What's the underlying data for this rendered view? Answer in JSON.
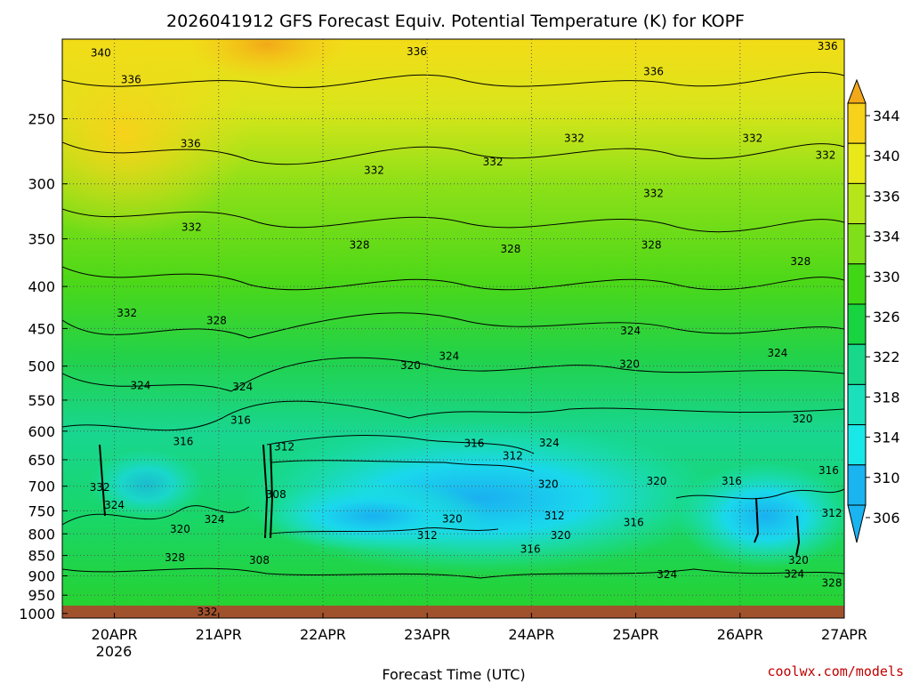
{
  "chart_data": {
    "type": "heatmap",
    "title": "2026041912 GFS Forecast Equiv. Potential Temperature (K) for KOPF",
    "xlabel": "Forecast Time (UTC)",
    "ylabel": "",
    "credit": "coolwx.com/models",
    "x_ticks": [
      "20APR",
      "21APR",
      "22APR",
      "23APR",
      "24APR",
      "25APR",
      "26APR",
      "27APR"
    ],
    "x_year_label": "2026",
    "x_range_days": [
      19.5,
      27.0
    ],
    "y_ticks": [
      250,
      300,
      350,
      400,
      450,
      500,
      550,
      600,
      650,
      700,
      750,
      800,
      850,
      900,
      950,
      1000
    ],
    "y_tick_labels": [
      "250",
      "300",
      "350",
      "400",
      "450",
      "500",
      "550",
      "600",
      "650",
      "700",
      "750",
      "800",
      "850",
      "900",
      "950",
      "1000"
    ],
    "y_range_hpa": [
      200,
      1013
    ],
    "y_scale": "log-pressure",
    "grid": true,
    "colorbar_ticks": [
      "344",
      "340",
      "336",
      "334",
      "330",
      "326",
      "322",
      "318",
      "314",
      "310",
      "306"
    ],
    "colorbar_levels": [
      344,
      340,
      336,
      334,
      330,
      326,
      322,
      318,
      314,
      310,
      306
    ],
    "colors": {
      "c344": "#f2a818",
      "c340": "#f7d21a",
      "c336": "#e8e81a",
      "c334": "#b6e51a",
      "c330": "#80df18",
      "c326": "#40d816",
      "c322": "#18d440",
      "c318": "#18d88c",
      "c314": "#1ae0bc",
      "c310": "#1ae8e8",
      "c306": "#1ab4f0",
      "ground": "#a0522d",
      "grid": "#7a7a7a"
    },
    "contour_labels": [
      {
        "text": "340",
        "day": 19.87,
        "p": 208
      },
      {
        "text": "336",
        "day": 20.16,
        "p": 224
      },
      {
        "text": "336",
        "day": 20.73,
        "p": 268
      },
      {
        "text": "332",
        "day": 20.74,
        "p": 339
      },
      {
        "text": "332",
        "day": 20.12,
        "p": 431
      },
      {
        "text": "328",
        "day": 20.98,
        "p": 440
      },
      {
        "text": "324",
        "day": 20.25,
        "p": 528
      },
      {
        "text": "316",
        "day": 20.66,
        "p": 618
      },
      {
        "text": "332",
        "day": 19.86,
        "p": 702
      },
      {
        "text": "324",
        "day": 20.0,
        "p": 738
      },
      {
        "text": "320",
        "day": 20.63,
        "p": 790
      },
      {
        "text": "324",
        "day": 20.96,
        "p": 768
      },
      {
        "text": "328",
        "day": 20.58,
        "p": 855
      },
      {
        "text": "332",
        "day": 20.89,
        "p": 996
      },
      {
        "text": "336",
        "day": 22.9,
        "p": 207
      },
      {
        "text": "332",
        "day": 22.49,
        "p": 289
      },
      {
        "text": "328",
        "day": 22.35,
        "p": 356
      },
      {
        "text": "324",
        "day": 21.23,
        "p": 530
      },
      {
        "text": "316",
        "day": 21.21,
        "p": 582
      },
      {
        "text": "312",
        "day": 21.63,
        "p": 627
      },
      {
        "text": "308",
        "day": 21.55,
        "p": 716
      },
      {
        "text": "308",
        "day": 21.39,
        "p": 861
      },
      {
        "text": "320",
        "day": 22.84,
        "p": 499
      },
      {
        "text": "324",
        "day": 23.21,
        "p": 486
      },
      {
        "text": "332",
        "day": 23.63,
        "p": 282
      },
      {
        "text": "328",
        "day": 23.8,
        "p": 360
      },
      {
        "text": "316",
        "day": 23.45,
        "p": 621
      },
      {
        "text": "312",
        "day": 23.82,
        "p": 643
      },
      {
        "text": "324",
        "day": 24.17,
        "p": 620
      },
      {
        "text": "320",
        "day": 24.16,
        "p": 696
      },
      {
        "text": "312",
        "day": 24.22,
        "p": 761
      },
      {
        "text": "320",
        "day": 23.24,
        "p": 767
      },
      {
        "text": "312",
        "day": 23.0,
        "p": 803
      },
      {
        "text": "316",
        "day": 23.99,
        "p": 835
      },
      {
        "text": "320",
        "day": 24.28,
        "p": 803
      },
      {
        "text": "332",
        "day": 24.41,
        "p": 264
      },
      {
        "text": "336",
        "day": 25.17,
        "p": 219
      },
      {
        "text": "332",
        "day": 25.17,
        "p": 308
      },
      {
        "text": "328",
        "day": 25.15,
        "p": 356
      },
      {
        "text": "324",
        "day": 24.95,
        "p": 453
      },
      {
        "text": "320",
        "day": 24.94,
        "p": 497
      },
      {
        "text": "316",
        "day": 24.98,
        "p": 775
      },
      {
        "text": "320",
        "day": 25.2,
        "p": 690
      },
      {
        "text": "324",
        "day": 25.3,
        "p": 896
      },
      {
        "text": "332",
        "day": 26.12,
        "p": 264
      },
      {
        "text": "328",
        "day": 26.58,
        "p": 373
      },
      {
        "text": "324",
        "day": 26.36,
        "p": 482
      },
      {
        "text": "320",
        "day": 26.6,
        "p": 580
      },
      {
        "text": "316",
        "day": 25.92,
        "p": 690
      },
      {
        "text": "316",
        "day": 26.85,
        "p": 670
      },
      {
        "text": "312",
        "day": 27.05,
        "p": 755
      },
      {
        "text": "320",
        "day": 26.56,
        "p": 862
      },
      {
        "text": "324",
        "day": 26.52,
        "p": 895
      },
      {
        "text": "328",
        "day": 26.91,
        "p": 918
      },
      {
        "text": "332",
        "day": 26.82,
        "p": 277
      },
      {
        "text": "336",
        "day": 26.84,
        "p": 204
      }
    ]
  }
}
